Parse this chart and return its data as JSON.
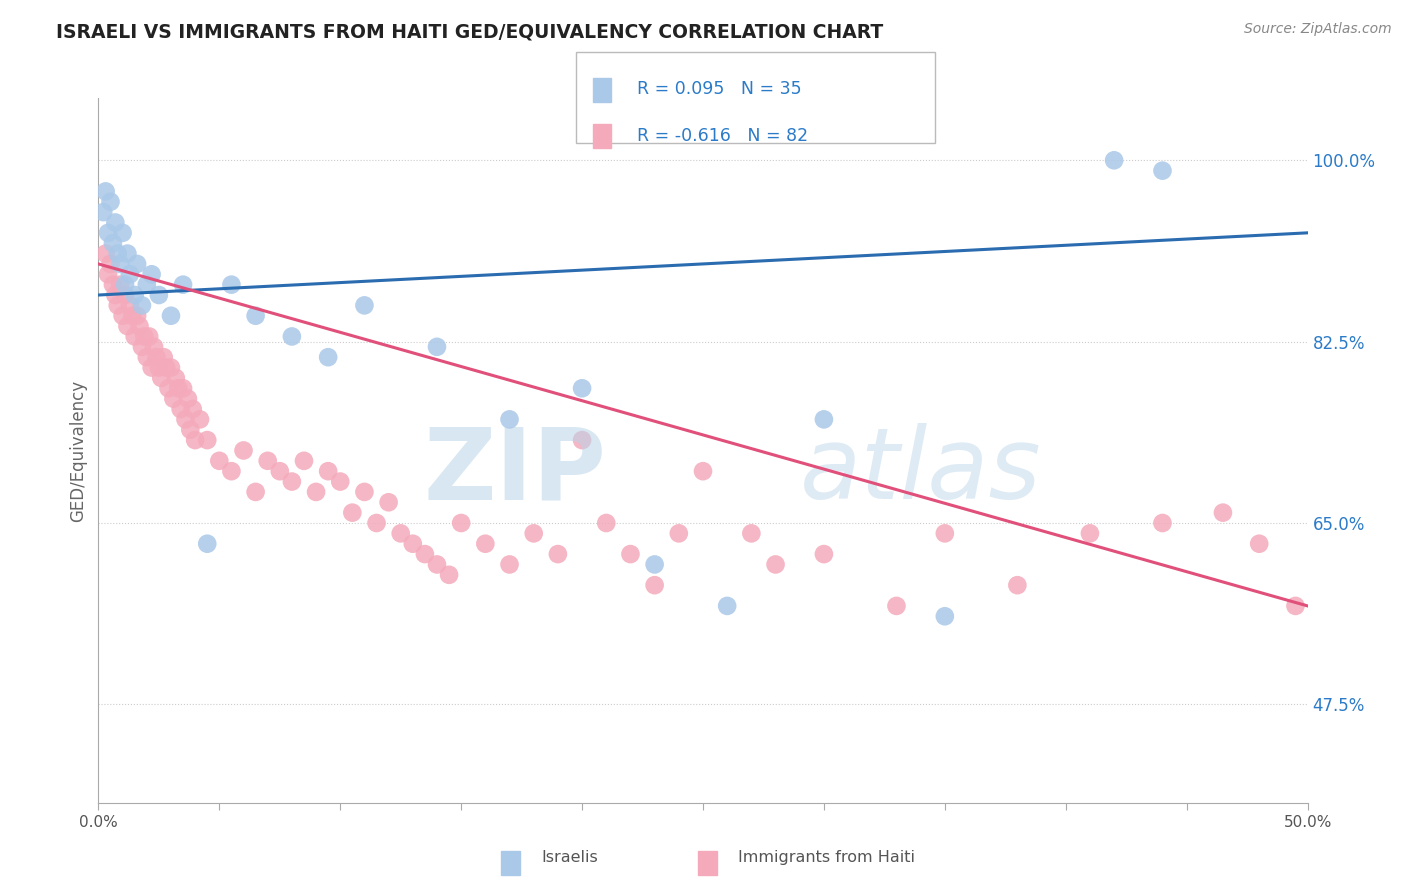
{
  "title": "ISRAELI VS IMMIGRANTS FROM HAITI GED/EQUIVALENCY CORRELATION CHART",
  "source": "Source: ZipAtlas.com",
  "ylabel": "GED/Equivalency",
  "xlim": [
    0.0,
    50.0
  ],
  "ylim": [
    38.0,
    106.0
  ],
  "yticks_right": [
    47.5,
    65.0,
    82.5,
    100.0
  ],
  "ytick_labels_right": [
    "47.5%",
    "65.0%",
    "82.5%",
    "100.0%"
  ],
  "grid_color": "#cccccc",
  "background_color": "#ffffff",
  "israeli_color": "#aac8e8",
  "haiti_color": "#f4aabb",
  "israeli_line_color": "#2b6cb0",
  "haiti_line_color": "#e0507a",
  "legend_R_israeli": "R = 0.095",
  "legend_N_israeli": "N = 35",
  "legend_R_haiti": "R = -0.616",
  "legend_N_haiti": "N = 82",
  "legend_label_israeli": "Israelis",
  "legend_label_haiti": "Immigrants from Haiti",
  "legend_text_color": "#2b7bc8",
  "watermark_text": "ZIP",
  "watermark_text2": "atlas",
  "israeli_x": [
    0.2,
    0.3,
    0.4,
    0.5,
    0.6,
    0.7,
    0.8,
    0.9,
    1.0,
    1.1,
    1.2,
    1.3,
    1.5,
    1.6,
    1.8,
    2.0,
    2.2,
    2.5,
    3.0,
    3.5,
    4.5,
    5.5,
    6.5,
    8.0,
    9.5,
    11.0,
    14.0,
    17.0,
    20.0,
    23.0,
    26.0,
    30.0,
    35.0,
    42.0,
    44.0
  ],
  "israeli_y": [
    95,
    97,
    93,
    96,
    92,
    94,
    91,
    90,
    93,
    88,
    91,
    89,
    87,
    90,
    86,
    88,
    89,
    87,
    85,
    88,
    63,
    88,
    85,
    83,
    81,
    86,
    82,
    75,
    78,
    61,
    57,
    75,
    56,
    100,
    99
  ],
  "haiti_x": [
    0.3,
    0.4,
    0.5,
    0.6,
    0.7,
    0.8,
    0.9,
    1.0,
    1.1,
    1.2,
    1.3,
    1.4,
    1.5,
    1.6,
    1.7,
    1.8,
    1.9,
    2.0,
    2.1,
    2.2,
    2.3,
    2.4,
    2.5,
    2.6,
    2.7,
    2.8,
    2.9,
    3.0,
    3.1,
    3.2,
    3.3,
    3.4,
    3.5,
    3.6,
    3.7,
    3.8,
    3.9,
    4.0,
    4.2,
    4.5,
    5.0,
    5.5,
    6.0,
    6.5,
    7.0,
    7.5,
    8.0,
    8.5,
    9.0,
    9.5,
    10.0,
    10.5,
    11.0,
    11.5,
    12.0,
    12.5,
    13.0,
    13.5,
    14.0,
    14.5,
    15.0,
    16.0,
    17.0,
    18.0,
    19.0,
    20.0,
    21.0,
    22.0,
    23.0,
    24.0,
    25.0,
    27.0,
    28.0,
    30.0,
    33.0,
    35.0,
    38.0,
    41.0,
    44.0,
    46.5,
    48.0,
    49.5
  ],
  "haiti_y": [
    91,
    89,
    90,
    88,
    87,
    86,
    88,
    85,
    87,
    84,
    86,
    85,
    83,
    85,
    84,
    82,
    83,
    81,
    83,
    80,
    82,
    81,
    80,
    79,
    81,
    80,
    78,
    80,
    77,
    79,
    78,
    76,
    78,
    75,
    77,
    74,
    76,
    73,
    75,
    73,
    71,
    70,
    72,
    68,
    71,
    70,
    69,
    71,
    68,
    70,
    69,
    66,
    68,
    65,
    67,
    64,
    63,
    62,
    61,
    60,
    65,
    63,
    61,
    64,
    62,
    73,
    65,
    62,
    59,
    64,
    70,
    64,
    61,
    62,
    57,
    64,
    59,
    64,
    65,
    66,
    63,
    57
  ]
}
